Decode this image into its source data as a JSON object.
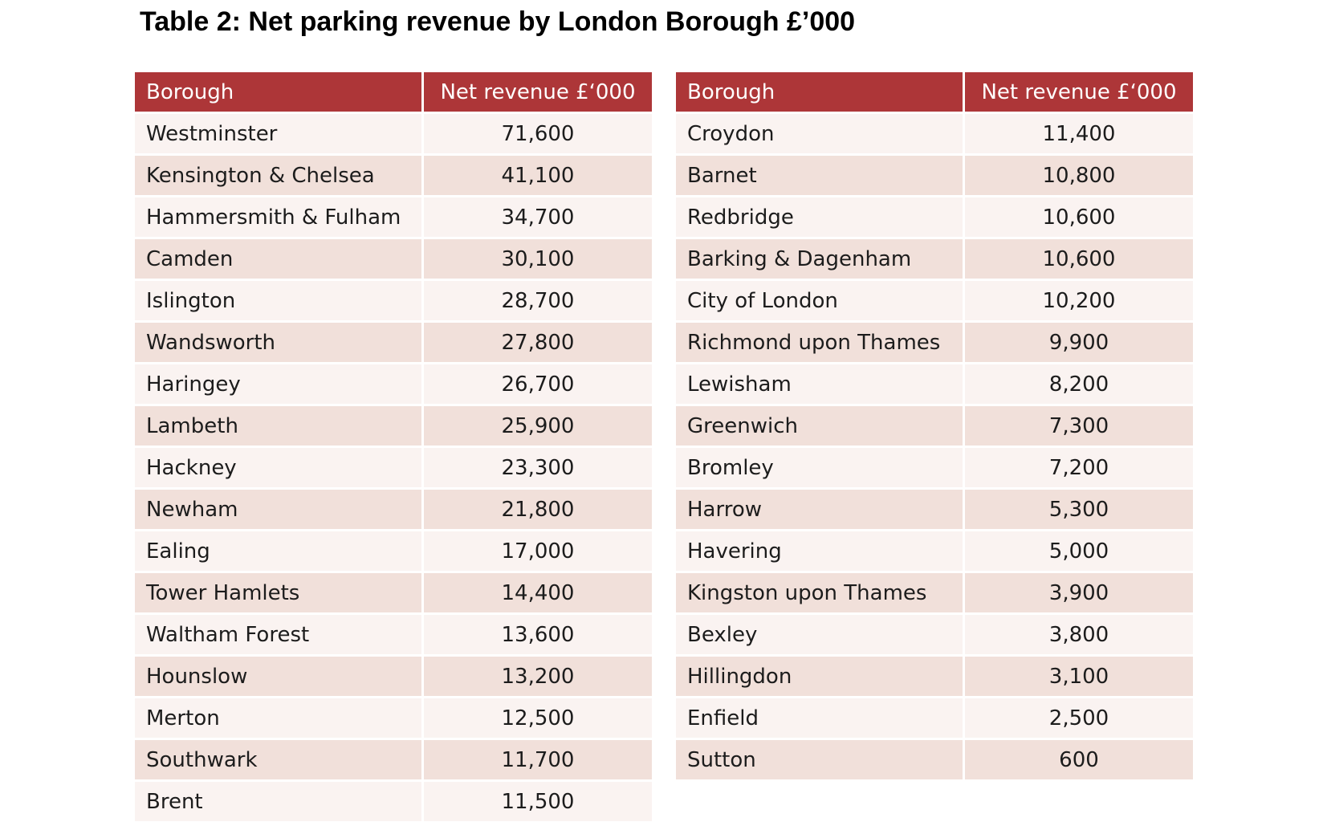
{
  "title": "Table 2: Net parking revenue by London Borough £’000",
  "colors": {
    "header_bg": "#ad3638",
    "header_text": "#ffffff",
    "row_light": "#faf3f1",
    "row_dark": "#f1e0da"
  },
  "columns": {
    "borough": "Borough",
    "revenue": "Net revenue £‘000"
  },
  "left_table": [
    {
      "borough": "Westminster",
      "revenue": "71,600"
    },
    {
      "borough": "Kensington & Chelsea",
      "revenue": "41,100"
    },
    {
      "borough": "Hammersmith & Fulham",
      "revenue": "34,700"
    },
    {
      "borough": "Camden",
      "revenue": "30,100"
    },
    {
      "borough": "Islington",
      "revenue": "28,700"
    },
    {
      "borough": "Wandsworth",
      "revenue": "27,800"
    },
    {
      "borough": "Haringey",
      "revenue": "26,700"
    },
    {
      "borough": "Lambeth",
      "revenue": "25,900"
    },
    {
      "borough": "Hackney",
      "revenue": "23,300"
    },
    {
      "borough": "Newham",
      "revenue": "21,800"
    },
    {
      "borough": "Ealing",
      "revenue": "17,000"
    },
    {
      "borough": "Tower Hamlets",
      "revenue": "14,400"
    },
    {
      "borough": "Waltham Forest",
      "revenue": "13,600"
    },
    {
      "borough": "Hounslow",
      "revenue": "13,200"
    },
    {
      "borough": "Merton",
      "revenue": "12,500"
    },
    {
      "borough": "Southwark",
      "revenue": "11,700"
    },
    {
      "borough": "Brent",
      "revenue": "11,500"
    }
  ],
  "right_table": [
    {
      "borough": "Croydon",
      "revenue": "11,400"
    },
    {
      "borough": "Barnet",
      "revenue": "10,800"
    },
    {
      "borough": "Redbridge",
      "revenue": "10,600"
    },
    {
      "borough": "Barking & Dagenham",
      "revenue": "10,600"
    },
    {
      "borough": "City of London",
      "revenue": "10,200"
    },
    {
      "borough": "Richmond upon Thames",
      "revenue": "9,900"
    },
    {
      "borough": "Lewisham",
      "revenue": "8,200"
    },
    {
      "borough": "Greenwich",
      "revenue": "7,300"
    },
    {
      "borough": "Bromley",
      "revenue": "7,200"
    },
    {
      "borough": "Harrow",
      "revenue": "5,300"
    },
    {
      "borough": "Havering",
      "revenue": "5,000"
    },
    {
      "borough": "Kingston upon Thames",
      "revenue": "3,900"
    },
    {
      "borough": "Bexley",
      "revenue": "3,800"
    },
    {
      "borough": "Hillingdon",
      "revenue": "3,100"
    },
    {
      "borough": "Enfield",
      "revenue": "2,500"
    },
    {
      "borough": "Sutton",
      "revenue": "600"
    }
  ]
}
